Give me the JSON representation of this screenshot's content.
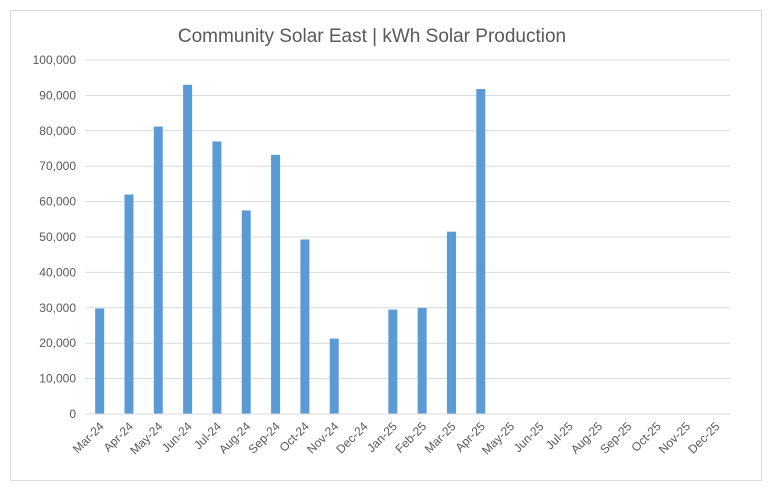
{
  "chart_data": {
    "type": "bar",
    "title": "Community Solar East | kWh Solar Production",
    "xlabel": "",
    "ylabel": "",
    "ylim": [
      0,
      100000
    ],
    "yticks": [
      0,
      10000,
      20000,
      30000,
      40000,
      50000,
      60000,
      70000,
      80000,
      90000,
      100000
    ],
    "ytick_labels": [
      "0",
      "10,000",
      "20,000",
      "30,000",
      "40,000",
      "50,000",
      "60,000",
      "70,000",
      "80,000",
      "90,000",
      "100,000"
    ],
    "categories": [
      "Mar-24",
      "Apr-24",
      "May-24",
      "Jun-24",
      "Jul-24",
      "Aug-24",
      "Sep-24",
      "Oct-24",
      "Nov-24",
      "Dec-24",
      "Jan-25",
      "Feb-25",
      "Mar-25",
      "Apr-25",
      "May-25",
      "Jun-25",
      "Jul-25",
      "Aug-25",
      "Sep-25",
      "Oct-25",
      "Nov-25",
      "Dec-25"
    ],
    "values": [
      29800,
      62000,
      81200,
      93000,
      77000,
      57500,
      73200,
      49300,
      21300,
      null,
      29500,
      30000,
      51500,
      91800,
      null,
      null,
      null,
      null,
      null,
      null,
      null,
      null
    ],
    "bar_color": "#5b9bd5",
    "grid": true,
    "legend": "none"
  }
}
